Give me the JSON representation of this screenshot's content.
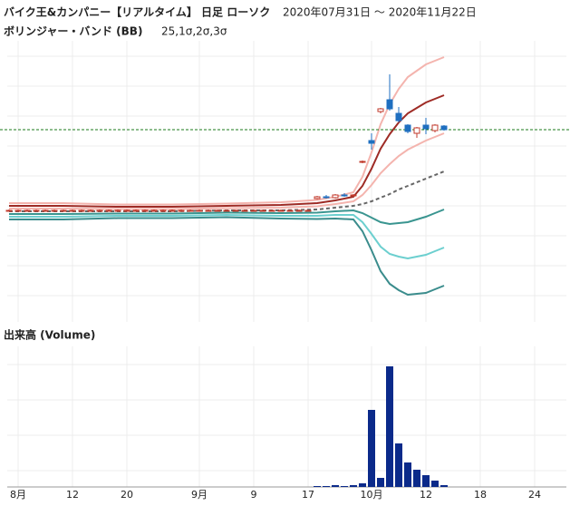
{
  "chart_data": {
    "type": "candlestick",
    "title": "バイク王&カンパニー【リアルタイム】 日足 ローソク",
    "period": "2020年07月31日 ～ 2020年11月22日",
    "subtitle": "ボリンジャー・バンド (BB)",
    "bb_params": "25,1σ,2σ,3σ",
    "categories": [
      null,
      "8月",
      null,
      null,
      null,
      null,
      null,
      "12",
      null,
      null,
      null,
      null,
      null,
      "20",
      null,
      null,
      null,
      null,
      null,
      null,
      null,
      "9月",
      null,
      null,
      null,
      null,
      null,
      "9",
      null,
      null,
      null,
      null,
      null,
      "17",
      null,
      null,
      null,
      null,
      null,
      null,
      "10月",
      null,
      null,
      null,
      null,
      null,
      "12",
      null,
      null,
      null,
      null,
      null,
      "18",
      null,
      null,
      null,
      null,
      null,
      "24",
      null
    ],
    "open": [
      12.3,
      12.3,
      12.3,
      12.3,
      12.3,
      12.3,
      12.3,
      12.3,
      12.3,
      12.3,
      12.3,
      12.3,
      12.3,
      12.3,
      12.3,
      12.3,
      12.3,
      12.3,
      12.3,
      12.3,
      12.3,
      12.3,
      12.3,
      12.3,
      12.3,
      12.3,
      12.3,
      12.3,
      12.3,
      12.3,
      12.3,
      12.3,
      12.3,
      12.3,
      13.6,
      13.8,
      13.7,
      14.0,
      13.9,
      17.6,
      20.0,
      23.2,
      24.5,
      23.0,
      21.7,
      20.8,
      21.7,
      21.1,
      21.6,
      null,
      null,
      null,
      null,
      null,
      null,
      null,
      null,
      null,
      null,
      null
    ],
    "high": [
      12.4,
      12.4,
      12.4,
      12.4,
      12.4,
      12.4,
      12.4,
      12.4,
      12.4,
      12.4,
      12.4,
      12.4,
      12.4,
      12.4,
      12.4,
      12.4,
      12.4,
      12.4,
      12.4,
      12.4,
      12.4,
      12.4,
      12.4,
      12.4,
      12.4,
      12.4,
      12.4,
      12.4,
      12.4,
      12.4,
      12.4,
      12.4,
      12.4,
      12.4,
      13.9,
      14.0,
      14.1,
      14.2,
      14.1,
      17.8,
      20.8,
      23.6,
      27.3,
      23.7,
      21.8,
      21.5,
      22.5,
      21.8,
      21.7,
      null,
      null,
      null,
      null,
      null,
      null,
      null,
      null,
      null,
      null,
      null
    ],
    "low": [
      12.2,
      12.2,
      12.2,
      12.2,
      12.2,
      12.2,
      12.2,
      12.2,
      12.2,
      12.2,
      12.2,
      12.2,
      12.2,
      12.2,
      12.2,
      12.2,
      12.2,
      12.2,
      12.2,
      12.2,
      12.2,
      12.2,
      12.2,
      12.2,
      12.2,
      12.2,
      12.2,
      12.2,
      12.2,
      12.2,
      12.2,
      12.2,
      12.2,
      12.2,
      13.5,
      13.6,
      13.6,
      13.8,
      13.8,
      17.5,
      19.0,
      23.0,
      23.3,
      22.0,
      20.8,
      20.3,
      20.7,
      20.9,
      21.1,
      null,
      null,
      null,
      null,
      null,
      null,
      null,
      null,
      null,
      null,
      null
    ],
    "close": [
      12.3,
      12.3,
      12.3,
      12.3,
      12.3,
      12.3,
      12.3,
      12.3,
      12.3,
      12.3,
      12.3,
      12.3,
      12.3,
      12.3,
      12.3,
      12.3,
      12.3,
      12.3,
      12.3,
      12.3,
      12.3,
      12.3,
      12.3,
      12.3,
      12.3,
      12.3,
      12.3,
      12.3,
      12.3,
      12.3,
      12.3,
      12.3,
      12.3,
      12.3,
      13.8,
      13.7,
      14.0,
      13.9,
      14.0,
      17.7,
      19.7,
      23.5,
      23.5,
      22.2,
      21.0,
      21.4,
      21.3,
      21.7,
      21.2,
      null,
      null,
      null,
      null,
      null,
      null,
      null,
      null,
      null,
      null,
      null
    ],
    "up_color": "#c0392b",
    "down_color": "#1f6fc0",
    "ylim": [
      0,
      31
    ],
    "grid": true,
    "reference_line": 21.2,
    "reference_color": "#1a7a1a",
    "bands": [
      {
        "color": "#f4b4ae",
        "x": [
          0,
          6,
          12,
          18,
          24,
          30,
          34,
          36,
          38,
          39,
          40,
          41,
          42,
          43,
          44,
          45,
          46,
          47,
          48
        ],
        "values": [
          13.1,
          13.1,
          12.95,
          12.95,
          13.05,
          13.2,
          13.45,
          13.8,
          14.3,
          16.0,
          18.7,
          21.8,
          24.0,
          25.7,
          27.0,
          27.7,
          28.4,
          28.8,
          29.2
        ]
      },
      {
        "color": "#9e2b25",
        "x": [
          0,
          6,
          12,
          18,
          24,
          30,
          34,
          36,
          38,
          39,
          40,
          41,
          42,
          43,
          44,
          45,
          46,
          47,
          48
        ],
        "values": [
          12.8,
          12.8,
          12.7,
          12.7,
          12.8,
          12.9,
          13.1,
          13.4,
          13.8,
          15.0,
          16.9,
          19.1,
          20.7,
          22.0,
          23.0,
          23.6,
          24.2,
          24.6,
          25.0
        ]
      },
      {
        "color": "#f4b4ae",
        "x": [
          0,
          6,
          12,
          18,
          24,
          30,
          34,
          36,
          38,
          39,
          40,
          41,
          42,
          43,
          44,
          45,
          46,
          47,
          48
        ],
        "values": [
          12.5,
          12.5,
          12.45,
          12.45,
          12.55,
          12.6,
          12.75,
          13.0,
          13.3,
          14.0,
          15.1,
          16.4,
          17.4,
          18.3,
          19.0,
          19.5,
          20.0,
          20.4,
          20.8
        ]
      },
      {
        "color": "#666666",
        "dash": true,
        "x": [
          0,
          6,
          12,
          18,
          24,
          30,
          34,
          36,
          38,
          39,
          40,
          41,
          42,
          43,
          44,
          45,
          46,
          47,
          48
        ],
        "values": [
          12.2,
          12.2,
          12.2,
          12.2,
          12.3,
          12.3,
          12.4,
          12.6,
          12.8,
          13.0,
          13.3,
          13.7,
          14.1,
          14.6,
          15.0,
          15.4,
          15.8,
          16.2,
          16.6
        ]
      },
      {
        "color": "#3a9590",
        "x": [
          0,
          6,
          12,
          18,
          24,
          30,
          34,
          36,
          38,
          39,
          40,
          41,
          42,
          43,
          44,
          45,
          46,
          47,
          48
        ],
        "values": [
          11.9,
          11.9,
          11.95,
          11.95,
          12.05,
          12.0,
          12.05,
          12.2,
          12.3,
          12.0,
          11.5,
          11.0,
          10.8,
          10.9,
          11.0,
          11.3,
          11.6,
          12.0,
          12.4
        ]
      },
      {
        "color": "#6ccfcf",
        "x": [
          0,
          6,
          12,
          18,
          24,
          30,
          34,
          36,
          38,
          39,
          40,
          41,
          42,
          43,
          44,
          45,
          46,
          47,
          48
        ],
        "values": [
          11.6,
          11.6,
          11.7,
          11.7,
          11.8,
          11.7,
          11.7,
          11.8,
          11.8,
          11.0,
          9.7,
          8.3,
          7.5,
          7.2,
          7.0,
          7.2,
          7.4,
          7.8,
          8.2
        ]
      },
      {
        "color": "#3a8c8c",
        "x": [
          0,
          6,
          12,
          18,
          24,
          30,
          34,
          36,
          38,
          39,
          40,
          41,
          42,
          43,
          44,
          45,
          46,
          47,
          48
        ],
        "values": [
          11.3,
          11.3,
          11.45,
          11.45,
          11.55,
          11.4,
          11.35,
          11.4,
          11.3,
          10.0,
          7.9,
          5.6,
          4.2,
          3.5,
          3.0,
          3.1,
          3.2,
          3.6,
          4.0
        ]
      }
    ],
    "volume": {
      "title": "出来高 (Volume)",
      "color": "#0b2a8a",
      "ylim": [
        0,
        15.5
      ],
      "values": [
        0,
        0,
        0,
        0,
        0,
        0,
        0,
        0,
        0,
        0,
        0,
        0,
        0,
        0,
        0,
        0,
        0,
        0,
        0,
        0,
        0,
        0,
        0,
        0,
        0,
        0,
        0,
        0,
        0,
        0,
        0,
        0,
        0,
        0,
        0.1,
        0.1,
        0.2,
        0.1,
        0.2,
        0.4,
        8.5,
        1.0,
        13.3,
        4.8,
        2.7,
        1.9,
        1.3,
        0.7,
        0.2,
        null,
        null,
        null,
        null,
        null,
        null,
        null,
        null,
        null,
        null,
        null
      ]
    }
  }
}
